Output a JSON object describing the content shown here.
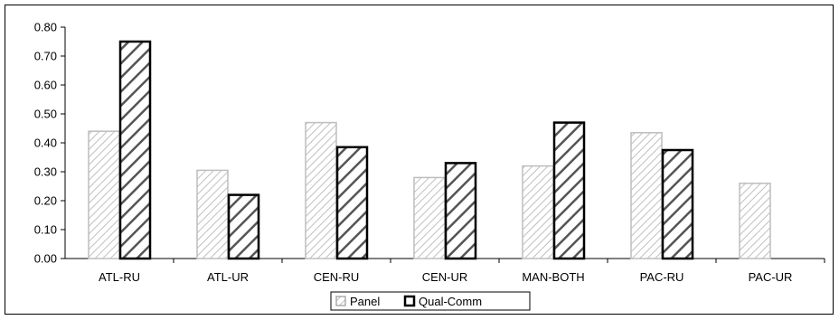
{
  "chart_data": {
    "type": "bar",
    "categories": [
      "ATL-RU",
      "ATL-UR",
      "CEN-RU",
      "CEN-UR",
      "MAN-BOTH",
      "PAC-RU",
      "PAC-UR"
    ],
    "series": [
      {
        "name": "Panel",
        "values": [
          0.44,
          0.305,
          0.47,
          0.28,
          0.32,
          0.435,
          0.26
        ],
        "color": "#c8c8c8",
        "pattern": "light-diagonal-hatch"
      },
      {
        "name": "Qual-Comm",
        "values": [
          0.75,
          0.22,
          0.385,
          0.33,
          0.47,
          0.375,
          null
        ],
        "color": "#000000",
        "pattern": "heavy-diagonal-hatch"
      }
    ],
    "title": "",
    "xlabel": "",
    "ylabel": "",
    "ylim": [
      0,
      0.8
    ],
    "yticks": [
      "0.00",
      "0.10",
      "0.20",
      "0.30",
      "0.40",
      "0.50",
      "0.60",
      "0.70",
      "0.80"
    ],
    "grid": false,
    "legend_position": "bottom"
  }
}
